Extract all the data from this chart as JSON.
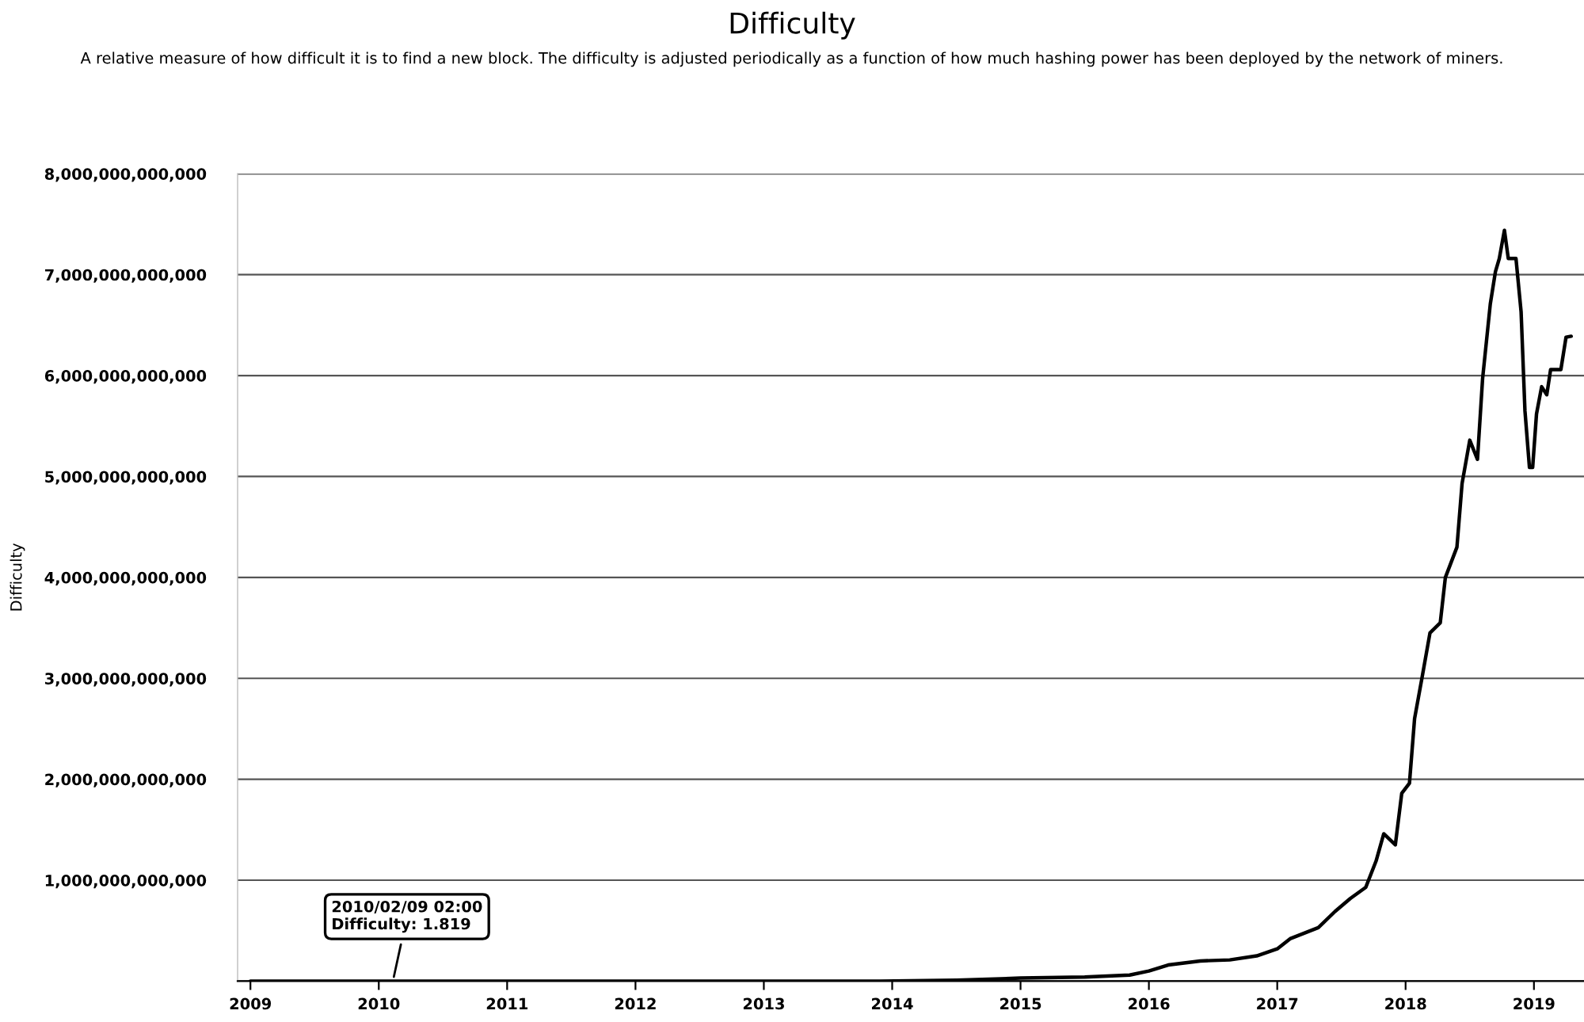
{
  "chart_data": {
    "type": "line",
    "title": "Difficulty",
    "subtitle": "A relative measure of how difficult it is to find a new block. The difficulty is adjusted periodically as a function of how much hashing power has been deployed by the network of miners.",
    "ylabel": "Difficulty",
    "x": [
      2009.0,
      2010.0,
      2011.0,
      2012.0,
      2013.0,
      2013.9,
      2014.5,
      2015.0,
      2015.5,
      2015.85,
      2016.0,
      2016.15,
      2016.4,
      2016.63,
      2016.84,
      2017.0,
      2017.1,
      2017.32,
      2017.45,
      2017.57,
      2017.69,
      2017.77,
      2017.83,
      2017.92,
      2017.97,
      2018.03,
      2018.07,
      2018.13,
      2018.19,
      2018.27,
      2018.31,
      2018.4,
      2018.44,
      2018.5,
      2018.56,
      2018.6,
      2018.66,
      2018.7,
      2018.73,
      2018.77,
      2018.8,
      2018.86,
      2018.9,
      2018.93,
      2018.965,
      2018.99,
      2019.02,
      2019.06,
      2019.1,
      2019.13,
      2019.21,
      2019.25,
      2019.29
    ],
    "series": [
      {
        "color": "#000000",
        "values": [
          0,
          0,
          0,
          0,
          0,
          0,
          10000000000,
          30000000000,
          40000000000,
          60000000000,
          100000000000,
          160000000000,
          200000000000,
          210000000000,
          250000000000,
          320000000000,
          420000000000,
          530000000000,
          690000000000,
          820000000000,
          930000000000,
          1190000000000,
          1460000000000,
          1350000000000,
          1860000000000,
          1960000000000,
          2600000000000,
          3020000000000,
          3450000000000,
          3550000000000,
          4000000000000,
          4300000000000,
          4930000000000,
          5360000000000,
          5170000000000,
          5970000000000,
          6710000000000,
          7030000000000,
          7160000000000,
          7440000000000,
          7160000000000,
          7160000000000,
          6630000000000,
          5650000000000,
          5090000000000,
          5090000000000,
          5620000000000,
          5890000000000,
          5810000000000,
          6060000000000,
          6060000000000,
          6380000000000,
          6390000000000
        ]
      }
    ],
    "xlim": [
      2008.9,
      2019.39
    ],
    "xticks": [
      2009,
      2010,
      2011,
      2012,
      2013,
      2014,
      2015,
      2016,
      2017,
      2018,
      2019
    ],
    "ylim": [
      0,
      8000000000000
    ],
    "yticks": [
      {
        "value": 0,
        "label": null
      },
      {
        "value": 1000000000000,
        "label": "1,000,000,000,000"
      },
      {
        "value": 2000000000000,
        "label": "2,000,000,000,000"
      },
      {
        "value": 3000000000000,
        "label": "3,000,000,000,000"
      },
      {
        "value": 4000000000000,
        "label": "4,000,000,000,000"
      },
      {
        "value": 5000000000000,
        "label": "5,000,000,000,000"
      },
      {
        "value": 6000000000000,
        "label": "6,000,000,000,000"
      },
      {
        "value": 7000000000000,
        "label": "7,000,000,000,000"
      },
      {
        "value": 8000000000000,
        "label": "8,000,000,000,000"
      }
    ],
    "grid": "y",
    "annotations": [
      {
        "text": "2010/02/09 02:00\nDifficulty: 1.819",
        "x": 2010.11,
        "y": 1.819
      }
    ]
  }
}
